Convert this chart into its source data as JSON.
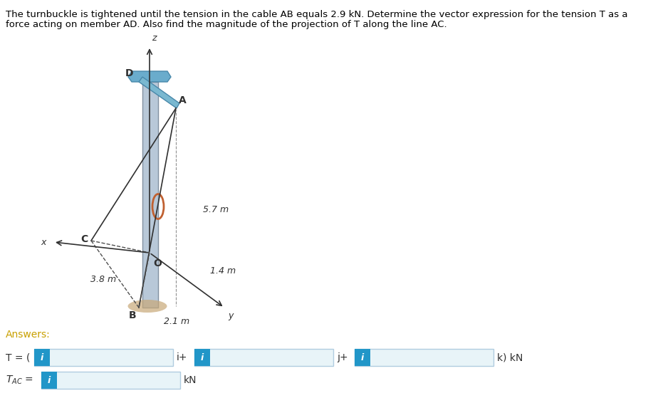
{
  "problem_text_line1": "The turnbuckle is tightened until the tension in the cable AB equals 2.9 kN. Determine the vector expression for the tension T as a",
  "problem_text_line2": "force acting on member AD. Also find the magnitude of the projection of T along the line AC.",
  "answers_label": "Answers:",
  "T_label": "T = (",
  "T_suffix1": "i+",
  "T_suffix2": "j+",
  "T_suffix3": "k) kN",
  "TAC_label": "Tₐₙ =",
  "TAC_suffix": "kN",
  "dim_38": "3.8 m",
  "dim_57": "5.7 m",
  "dim_14": "1.4 m",
  "dim_21": "2.1 m",
  "label_D": "D",
  "label_A": "A",
  "label_O": "O",
  "label_B": "B",
  "label_C": "C",
  "label_x": "x",
  "label_y": "y",
  "label_z": "z",
  "text_color": "#000000",
  "problem_text_color": "#000000",
  "answers_color": "#c8a000",
  "blue_box_color": "#2196c8",
  "input_box_color": "#e8f4f8",
  "input_border_color": "#b0cce0",
  "label_color_italic": "#2196c8",
  "diagram_line_color": "#404040",
  "figure_bg": "#ffffff"
}
